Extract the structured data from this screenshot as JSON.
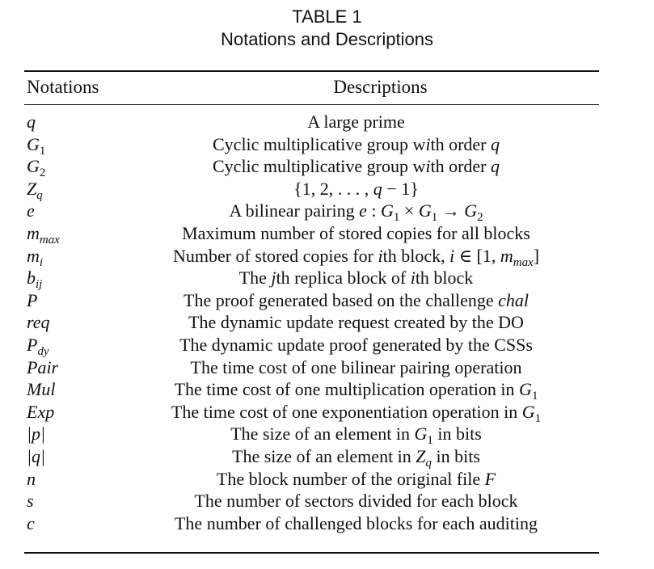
{
  "caption": {
    "label": "TABLE 1",
    "title": "Notations and Descriptions"
  },
  "headers": {
    "notation": "Notations",
    "description": "Descriptions"
  },
  "rows": [
    {
      "notation": "q",
      "description": "A large prime"
    },
    {
      "notation": "G₁",
      "description": "Cyclic multiplicative group with order q"
    },
    {
      "notation": "G₂",
      "description": "Cyclic multiplicative group with order q"
    },
    {
      "notation": "Z_q",
      "description": "{1, 2, . . . , q − 1}"
    },
    {
      "notation": "e",
      "description": "A bilinear pairing e : G₁ × G₁ → G₂"
    },
    {
      "notation": "m_max",
      "description": "Maximum number of stored copies for all blocks"
    },
    {
      "notation": "m_i",
      "description": "Number of stored copies for ith block, i ∈ [1, m_max]"
    },
    {
      "notation": "b_ij",
      "description": "The jth replica block of ith block"
    },
    {
      "notation": "P",
      "description": "The proof generated based on the challenge chal"
    },
    {
      "notation": "req",
      "description": "The dynamic update request created by the DO"
    },
    {
      "notation": "P_dy",
      "description": "The dynamic update proof generated by the CSSs"
    },
    {
      "notation": "Pair",
      "description": "The time cost of one bilinear pairing operation"
    },
    {
      "notation": "Mul",
      "description": "The time cost of one multiplication operation in G₁"
    },
    {
      "notation": "Exp",
      "description": "The time cost of one exponentiation operation in G₁"
    },
    {
      "notation": "|p|",
      "description": "The size of an element in G₁ in bits"
    },
    {
      "notation": "|q|",
      "description": "The size of an element in Z_q in bits"
    },
    {
      "notation": "n",
      "description": "The block number of the original file F"
    },
    {
      "notation": "s",
      "description": "The number of sectors divided for each block"
    },
    {
      "notation": "c",
      "description": "The number of challenged blocks for each auditing"
    }
  ]
}
